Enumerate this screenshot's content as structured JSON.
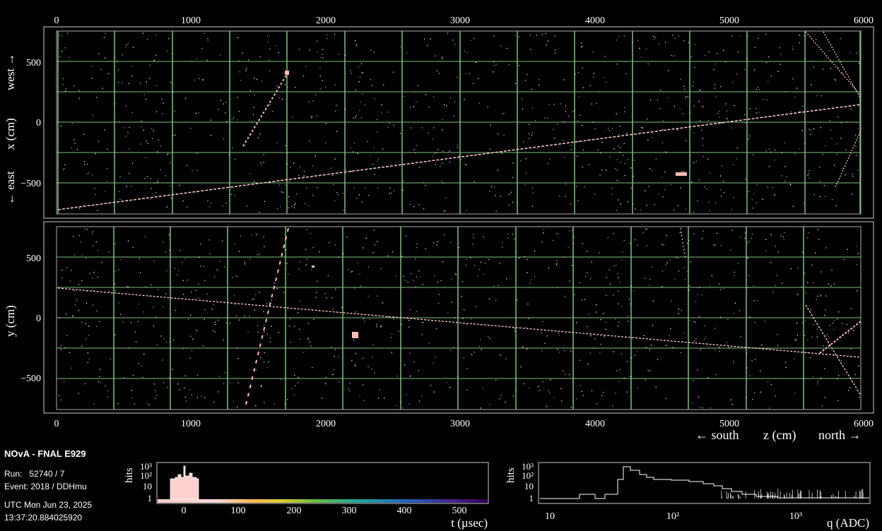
{
  "top_view": {
    "axis_top_ticks": [
      "0",
      "1000",
      "2000",
      "3000",
      "4000",
      "5000",
      "6000"
    ],
    "axis_left_ticks": [
      "500",
      "0",
      "−500"
    ],
    "ylabel_west": "west →",
    "ylabel_x": "x (cm)",
    "ylabel_east": "← east"
  },
  "side_view": {
    "axis_bottom_ticks": [
      "0",
      "1000",
      "2000",
      "3000",
      "4000",
      "5000",
      "6000"
    ],
    "axis_left_ticks": [
      "500",
      "0",
      "−500"
    ],
    "ylabel": "y (cm)",
    "xlabel_south": "← south",
    "xlabel_z": "z (cm)",
    "xlabel_north": "north →"
  },
  "event_info": {
    "title": "NOvA - FNAL E929",
    "run_line": "Run:   52740 / 7",
    "event_line": "Event: 2018 / DDHmu",
    "date_line": "UTC Mon Jun 23, 2025",
    "time_line": "13:37:20.884025920"
  },
  "time_hist": {
    "ylabel": "hits",
    "y_ticks": [
      "10³",
      "10²",
      "10",
      "1"
    ],
    "x_ticks": [
      "0",
      "100",
      "200",
      "300",
      "400",
      "500"
    ],
    "xlabel": "t (µsec)"
  },
  "charge_hist": {
    "ylabel": "hits",
    "y_ticks": [
      "10³",
      "10²",
      "10",
      "1"
    ],
    "x_ticks": [
      "10",
      "10²",
      "10³"
    ],
    "xlabel": "q (ADC)"
  },
  "colors": {
    "grid": "#7fc07f",
    "hit": "#ffd0d0",
    "background": "#000000"
  }
}
